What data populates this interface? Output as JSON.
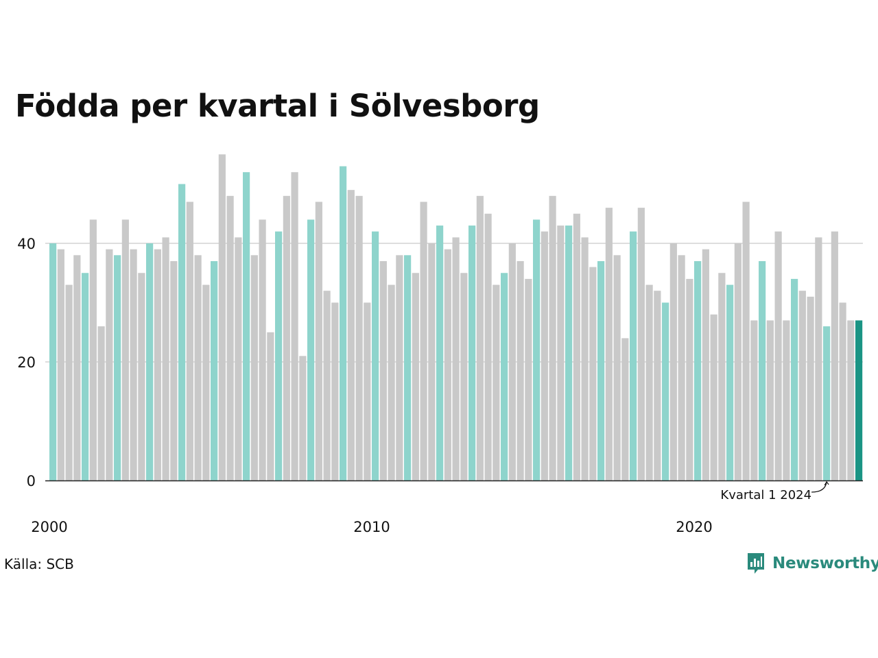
{
  "chart_data": {
    "type": "bar",
    "title": "Födda per kvartal i Sölvesborg",
    "xlabel": "",
    "ylabel": "",
    "ylim": [
      0,
      55
    ],
    "yticks": [
      0,
      20,
      40
    ],
    "grid": true,
    "x_tick_labels": [
      "2000",
      "2010",
      "2020"
    ],
    "first_period": "2000 Q1",
    "categories": [
      "2000 Q1",
      "2000 Q2",
      "2000 Q3",
      "2000 Q4",
      "2001 Q1",
      "2001 Q2",
      "2001 Q3",
      "2001 Q4",
      "2002 Q1",
      "2002 Q2",
      "2002 Q3",
      "2002 Q4",
      "2003 Q1",
      "2003 Q2",
      "2003 Q3",
      "2003 Q4",
      "2004 Q1",
      "2004 Q2",
      "2004 Q3",
      "2004 Q4",
      "2005 Q1",
      "2005 Q2",
      "2005 Q3",
      "2005 Q4",
      "2006 Q1",
      "2006 Q2",
      "2006 Q3",
      "2006 Q4",
      "2007 Q1",
      "2007 Q2",
      "2007 Q3",
      "2007 Q4",
      "2008 Q1",
      "2008 Q2",
      "2008 Q3",
      "2008 Q4",
      "2009 Q1",
      "2009 Q2",
      "2009 Q3",
      "2009 Q4",
      "2010 Q1",
      "2010 Q2",
      "2010 Q3",
      "2010 Q4",
      "2011 Q1",
      "2011 Q2",
      "2011 Q3",
      "2011 Q4",
      "2012 Q1",
      "2012 Q2",
      "2012 Q3",
      "2012 Q4",
      "2013 Q1",
      "2013 Q2",
      "2013 Q3",
      "2013 Q4",
      "2014 Q1",
      "2014 Q2",
      "2014 Q3",
      "2014 Q4",
      "2015 Q1",
      "2015 Q2",
      "2015 Q3",
      "2015 Q4",
      "2016 Q1",
      "2016 Q2",
      "2016 Q3",
      "2016 Q4",
      "2017 Q1",
      "2017 Q2",
      "2017 Q3",
      "2017 Q4",
      "2018 Q1",
      "2018 Q2",
      "2018 Q3",
      "2018 Q4",
      "2019 Q1",
      "2019 Q2",
      "2019 Q3",
      "2019 Q4",
      "2020 Q1",
      "2020 Q2",
      "2020 Q3",
      "2020 Q4",
      "2021 Q1",
      "2021 Q2",
      "2021 Q3",
      "2021 Q4",
      "2022 Q1",
      "2022 Q2",
      "2022 Q3",
      "2022 Q4",
      "2023 Q1",
      "2023 Q2",
      "2023 Q3",
      "2023 Q4",
      "2024 Q1",
      "2024 Q2",
      "2024 Q3",
      "2024 Q4",
      "2025 Q1"
    ],
    "values": [
      40,
      39,
      33,
      38,
      35,
      44,
      26,
      39,
      38,
      44,
      39,
      35,
      40,
      39,
      41,
      37,
      50,
      47,
      38,
      33,
      37,
      55,
      48,
      41,
      52,
      38,
      44,
      25,
      42,
      48,
      52,
      21,
      44,
      47,
      32,
      30,
      53,
      49,
      48,
      30,
      42,
      37,
      33,
      38,
      38,
      35,
      47,
      40,
      43,
      39,
      41,
      35,
      43,
      48,
      45,
      33,
      35,
      40,
      37,
      34,
      44,
      42,
      48,
      43,
      43,
      45,
      41,
      36,
      37,
      46,
      38,
      24,
      42,
      46,
      33,
      32,
      30,
      40,
      38,
      34,
      37,
      39,
      28,
      35,
      33,
      40,
      47,
      27,
      37,
      27,
      42,
      27,
      34,
      32,
      31,
      41,
      26,
      42,
      30,
      27,
      27
    ],
    "annotation": {
      "label": "Kvartal 1 2024",
      "category": "2024 Q1"
    }
  },
  "colors": {
    "q1_bar": "#8ed4cc",
    "other_bar": "#c9c9c9",
    "latest_bar": "#1a9484",
    "gridline": "#dddddd",
    "axis": "#222222",
    "brand": "#2a8a7c"
  },
  "source_text": "Källa: SCB",
  "logo": {
    "text": "Newsworthy",
    "icon": "newsworthy-chart-bubble-icon"
  }
}
